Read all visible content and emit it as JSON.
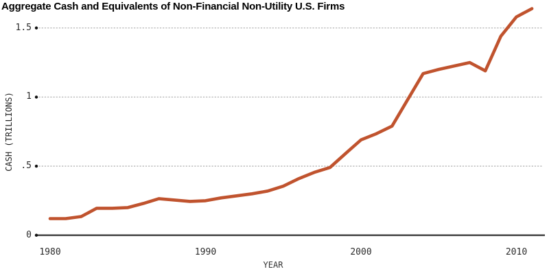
{
  "chart_data": {
    "type": "line",
    "title": "Aggregate Cash and Equivalents of Non-Financial Non-Utility U.S. Firms",
    "xlabel": "YEAR",
    "ylabel": "CASH (TRILLIONS)",
    "xlim": [
      1980,
      2011
    ],
    "ylim": [
      0,
      1.65
    ],
    "grid": "horizontal-dotted",
    "legend": "none",
    "x_ticks": [
      {
        "label": "1980",
        "value": 1980
      },
      {
        "label": "1990",
        "value": 1990
      },
      {
        "label": "2000",
        "value": 2000
      },
      {
        "label": "2010",
        "value": 2010
      }
    ],
    "y_ticks": [
      {
        "label": "1.5",
        "value": 1.5
      },
      {
        "label": "1",
        "value": 1.0
      },
      {
        "label": ".5",
        "value": 0.5
      },
      {
        "label": "0",
        "value": 0.0
      }
    ],
    "series": [
      {
        "name": "aggregate-cash",
        "color": "#c0532e",
        "x": [
          1980,
          1981,
          1982,
          1983,
          1984,
          1985,
          1986,
          1987,
          1988,
          1989,
          1990,
          1991,
          1992,
          1993,
          1994,
          1995,
          1996,
          1997,
          1998,
          1999,
          2000,
          2001,
          2002,
          2003,
          2004,
          2005,
          2006,
          2007,
          2008,
          2009,
          2010,
          2011
        ],
        "values": [
          0.12,
          0.12,
          0.135,
          0.195,
          0.195,
          0.2,
          0.23,
          0.265,
          0.255,
          0.245,
          0.25,
          0.27,
          0.285,
          0.3,
          0.32,
          0.355,
          0.41,
          0.455,
          0.49,
          0.59,
          0.69,
          0.735,
          0.79,
          0.98,
          1.17,
          1.2,
          1.225,
          1.25,
          1.19,
          1.44,
          1.58,
          1.64
        ]
      }
    ],
    "colors": {
      "line": "#c0532e",
      "axis": "#4d4d4d",
      "grid_dots": "#b3b3b3",
      "tick_dot": "#111111",
      "text": "#2b2b2b",
      "title_text": "#000000"
    }
  }
}
